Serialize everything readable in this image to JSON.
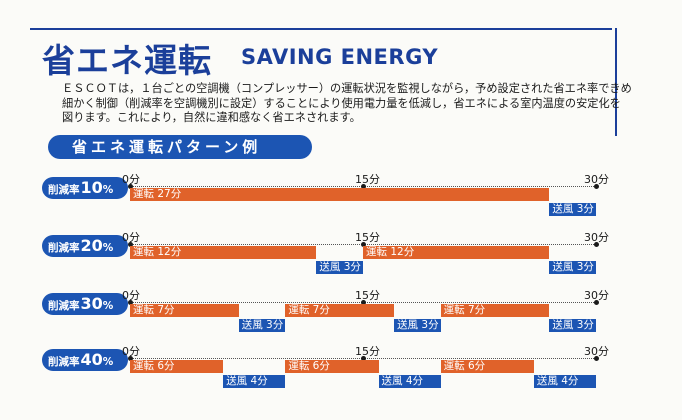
{
  "header": {
    "title_jp": "省エネ運転",
    "title_en": "SAVING ENERGY"
  },
  "description": {
    "lines": [
      "ＥＳＣＯＴは，１台ごとの空調機（コンプレッサー）の運転状況を監視しながら，予め設定された省エネ率できめ",
      "細かく制御（削減率を空調機別に設定）することにより使用電力量を低減し，省エネによる室内温度の安定化を",
      "図ります。これにより，自然に違和感なく省エネされます。"
    ]
  },
  "pattern_header": "省エネ運転パターン例",
  "rows": [
    {
      "badge_label": "削減率",
      "badge_num": "10",
      "badge_pct": "%",
      "ticks": [
        "0分",
        "15分",
        "30分"
      ],
      "segments": [
        {
          "kind": "run",
          "label": "運転 27分",
          "start": 0,
          "end": 27
        },
        {
          "kind": "fan",
          "label": "送風 3分",
          "start": 27,
          "end": 30
        }
      ]
    },
    {
      "badge_label": "削減率",
      "badge_num": "20",
      "badge_pct": "%",
      "ticks": [
        "0分",
        "15分",
        "30分"
      ],
      "segments": [
        {
          "kind": "run",
          "label": "運転 12分",
          "start": 0,
          "end": 12
        },
        {
          "kind": "fan",
          "label": "送風 3分",
          "start": 12,
          "end": 15
        },
        {
          "kind": "run",
          "label": "運転 12分",
          "start": 15,
          "end": 27
        },
        {
          "kind": "fan",
          "label": "送風 3分",
          "start": 27,
          "end": 30
        }
      ]
    },
    {
      "badge_label": "削減率",
      "badge_num": "30",
      "badge_pct": "%",
      "ticks": [
        "0分",
        "15分",
        "30分"
      ],
      "segments": [
        {
          "kind": "run",
          "label": "運転 7分",
          "start": 0,
          "end": 7
        },
        {
          "kind": "fan",
          "label": "送風 3分",
          "start": 7,
          "end": 10
        },
        {
          "kind": "run",
          "label": "運転 7分",
          "start": 10,
          "end": 17
        },
        {
          "kind": "fan",
          "label": "送風 3分",
          "start": 17,
          "end": 20
        },
        {
          "kind": "run",
          "label": "運転 7分",
          "start": 20,
          "end": 27
        },
        {
          "kind": "fan",
          "label": "送風 3分",
          "start": 27,
          "end": 30
        }
      ]
    },
    {
      "badge_label": "削減率",
      "badge_num": "40",
      "badge_pct": "%",
      "ticks": [
        "0分",
        "15分",
        "30分"
      ],
      "segments": [
        {
          "kind": "run",
          "label": "運転 6分",
          "start": 0,
          "end": 6
        },
        {
          "kind": "fan",
          "label": "送風 4分",
          "start": 6,
          "end": 10
        },
        {
          "kind": "run",
          "label": "運転 6分",
          "start": 10,
          "end": 16
        },
        {
          "kind": "fan",
          "label": "送風 4分",
          "start": 16,
          "end": 20
        },
        {
          "kind": "run",
          "label": "運転 6分",
          "start": 20,
          "end": 26
        },
        {
          "kind": "fan",
          "label": "送風 4分",
          "start": 26,
          "end": 30
        }
      ]
    }
  ],
  "colors": {
    "brand_blue": "#1b3f9a",
    "run_orange": "#e0622a",
    "fan_blue": "#1c55b3"
  }
}
